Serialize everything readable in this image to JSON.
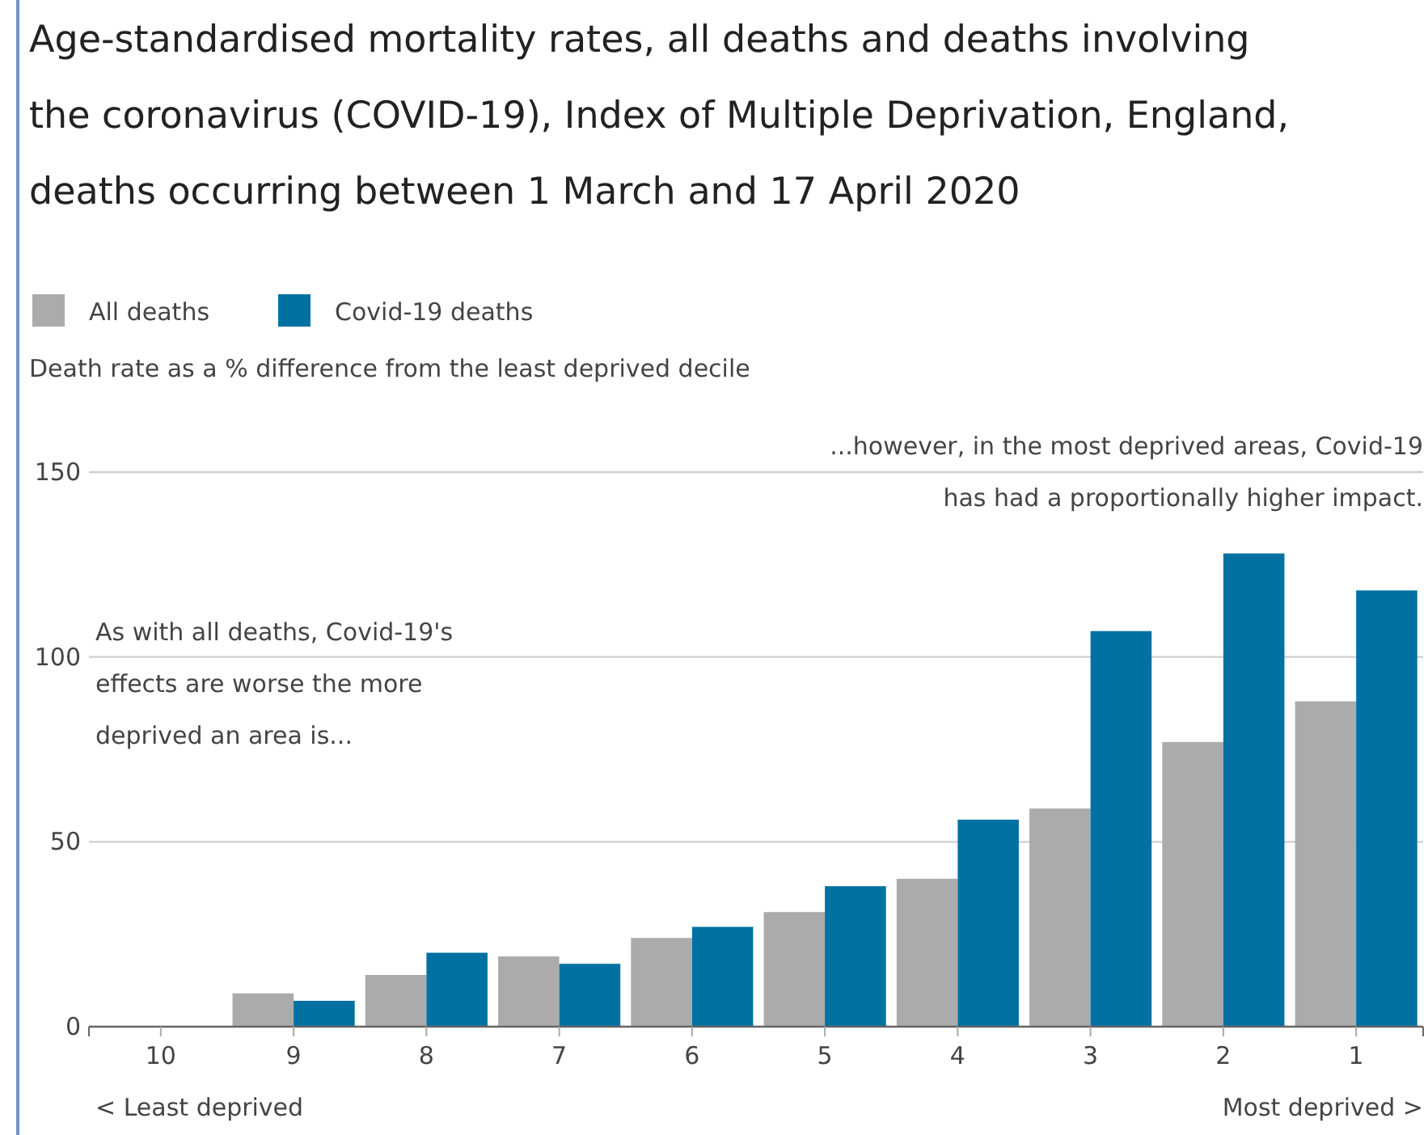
{
  "chart_data": {
    "type": "bar",
    "title": "Age-standardised mortality rates, all deaths and deaths involving the coronavirus (COVID-19), Index of Multiple Deprivation, England, deaths occurring between 1 March and 17 April 2020",
    "ylabel": "Death rate as a % difference from the least deprived decile",
    "categories": [
      "10",
      "9",
      "8",
      "7",
      "6",
      "5",
      "4",
      "3",
      "2",
      "1"
    ],
    "series": [
      {
        "name": "All deaths",
        "color": "#ababab",
        "values": [
          0,
          9,
          14,
          19,
          24,
          31,
          40,
          59,
          77,
          88
        ]
      },
      {
        "name": "Covid-19 deaths",
        "color": "#0071a1",
        "values": [
          0,
          7,
          20,
          17,
          27,
          38,
          56,
          107,
          128,
          118
        ]
      }
    ],
    "ylim": [
      0,
      150
    ],
    "yticks": [
      0,
      50,
      100,
      150
    ],
    "grid": "y",
    "legend": "top left",
    "annotations": [
      "As with all deaths, Covid-19's effects are worse the more deprived an area is...",
      "...however, in the most deprived areas, Covid-19 has had a proportionally higher impact.",
      "< Least deprived",
      "Most deprived >"
    ]
  }
}
